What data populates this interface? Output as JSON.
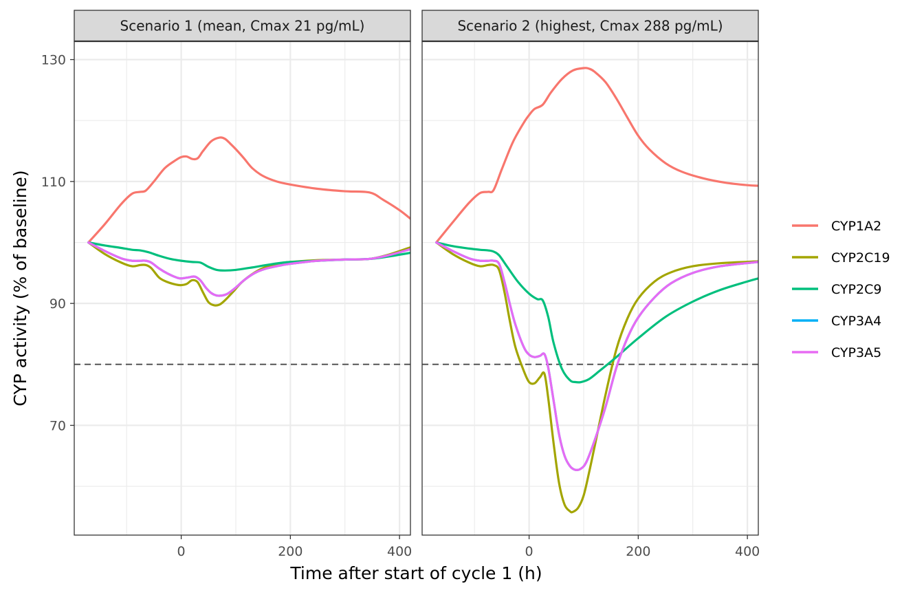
{
  "chart_data": {
    "type": "line",
    "xlabel": "Time after start of cycle 1 (h)",
    "ylabel": "CYP activity (% of baseline)",
    "xlim": [
      -196,
      420
    ],
    "ylim": [
      52,
      133
    ],
    "x_ticks": [
      0,
      200,
      400
    ],
    "x_tick_labels": [
      "0",
      "200",
      "400"
    ],
    "y_ticks": [
      70,
      90,
      110,
      130
    ],
    "y_tick_labels": [
      "70",
      "90",
      "110",
      "130"
    ],
    "reference_line": {
      "y": 80,
      "style": "dashed"
    },
    "grid": true,
    "legend_position": "right",
    "colors": {
      "CYP1A2": "#F8766D",
      "CYP2C19": "#A3A500",
      "CYP2C9": "#00BF7D",
      "CYP3A4": "#00B0F6",
      "CYP3A5": "#E76BF3"
    },
    "panels": [
      {
        "strip": "Scenario 1 (mean, Cmax 21 pg/mL)",
        "series": [
          {
            "name": "CYP1A2",
            "x": [
              -170,
              -140,
              -110,
              -90,
              -75,
              -65,
              -50,
              -30,
              -10,
              0,
              10,
              20,
              30,
              40,
              55,
              70,
              80,
              90,
              100,
              115,
              130,
              150,
              175,
              200,
              250,
              300,
              345,
              370,
              400,
              420
            ],
            "y": [
              100,
              103,
              106.3,
              108,
              108.3,
              108.5,
              110,
              112.2,
              113.5,
              114,
              114.1,
              113.7,
              113.8,
              115,
              116.6,
              117.2,
              117,
              116.2,
              115.3,
              113.8,
              112.2,
              110.9,
              110,
              109.5,
              108.8,
              108.4,
              108.2,
              107,
              105.3,
              103.9
            ]
          },
          {
            "name": "CYP2C19",
            "x": [
              -170,
              -140,
              -110,
              -90,
              -75,
              -65,
              -55,
              -40,
              -25,
              -10,
              0,
              10,
              20,
              30,
              40,
              50,
              60,
              70,
              80,
              95,
              110,
              130,
              150,
              175,
              200,
              250,
              300,
              345,
              380,
              420
            ],
            "y": [
              100,
              98.1,
              96.7,
              96.1,
              96.3,
              96.3,
              95.8,
              94.2,
              93.5,
              93.1,
              93,
              93.2,
              93.8,
              93.5,
              91.8,
              90.2,
              89.7,
              89.8,
              90.5,
              91.9,
              93.4,
              94.8,
              95.8,
              96.5,
              96.8,
              97.1,
              97.2,
              97.3,
              98,
              99.2
            ]
          },
          {
            "name": "CYP2C9",
            "x": [
              -170,
              -140,
              -110,
              -90,
              -75,
              -60,
              -40,
              -20,
              0,
              20,
              35,
              50,
              65,
              80,
              100,
              130,
              170,
              200,
              250,
              300,
              345,
              380,
              420
            ],
            "y": [
              100,
              99.5,
              99.1,
              98.8,
              98.7,
              98.4,
              97.8,
              97.3,
              97.0,
              96.8,
              96.7,
              96.0,
              95.5,
              95.4,
              95.5,
              95.9,
              96.5,
              96.8,
              97.0,
              97.2,
              97.3,
              97.7,
              98.3
            ]
          },
          {
            "name": "CYP3A4",
            "x": [
              -170,
              -140,
              -110,
              -90,
              -75,
              -65,
              -55,
              -40,
              -25,
              -10,
              0,
              15,
              25,
              35,
              45,
              55,
              65,
              75,
              85,
              100,
              115,
              135,
              155,
              180,
              200,
              250,
              300,
              345,
              380,
              420
            ],
            "y": [
              100,
              98.6,
              97.4,
              97,
              97,
              97,
              96.7,
              95.7,
              94.9,
              94.3,
              94.1,
              94.3,
              94.4,
              93.8,
              92.6,
              91.7,
              91.3,
              91.3,
              91.6,
              92.6,
              93.8,
              95,
              95.7,
              96.2,
              96.5,
              97,
              97.2,
              97.3,
              97.9,
              98.9
            ]
          },
          {
            "name": "CYP3A5",
            "x": [
              -170,
              -140,
              -110,
              -90,
              -75,
              -65,
              -55,
              -40,
              -25,
              -10,
              0,
              15,
              25,
              35,
              45,
              55,
              65,
              75,
              85,
              100,
              115,
              135,
              155,
              180,
              200,
              250,
              300,
              345,
              380,
              420
            ],
            "y": [
              100,
              98.6,
              97.4,
              97,
              97,
              97,
              96.7,
              95.7,
              94.9,
              94.3,
              94.1,
              94.3,
              94.4,
              93.8,
              92.6,
              91.7,
              91.3,
              91.3,
              91.6,
              92.6,
              93.8,
              95,
              95.7,
              96.2,
              96.5,
              97,
              97.2,
              97.3,
              97.9,
              98.9
            ]
          }
        ]
      },
      {
        "strip": "Scenario 2 (highest, Cmax 288 pg/mL)",
        "series": [
          {
            "name": "CYP1A2",
            "x": [
              -170,
              -140,
              -110,
              -90,
              -75,
              -65,
              -50,
              -30,
              -10,
              0,
              10,
              25,
              40,
              60,
              80,
              100,
              110,
              120,
              140,
              160,
              180,
              200,
              220,
              250,
              280,
              320,
              360,
              400,
              420
            ],
            "y": [
              100,
              103.3,
              106.5,
              108.1,
              108.3,
              108.6,
              112,
              116.4,
              119.6,
              120.9,
              121.9,
              122.6,
              124.6,
              126.8,
              128.2,
              128.6,
              128.5,
              128,
              126.3,
              123.6,
              120.5,
              117.5,
              115.3,
              113,
              111.6,
              110.5,
              109.8,
              109.4,
              109.3
            ]
          },
          {
            "name": "CYP2C19",
            "x": [
              -170,
              -140,
              -110,
              -90,
              -75,
              -65,
              -55,
              -45,
              -35,
              -25,
              -10,
              0,
              10,
              20,
              28,
              35,
              45,
              55,
              65,
              75,
              80,
              90,
              100,
              110,
              120,
              140,
              160,
              180,
              200,
              230,
              260,
              300,
              350,
              420
            ],
            "y": [
              100,
              98.1,
              96.7,
              96.1,
              96.3,
              96.3,
              95.5,
              91.8,
              87,
              82.8,
              79,
              77.1,
              76.9,
              77.9,
              78.5,
              74.5,
              67,
              60.5,
              57,
              55.9,
              55.8,
              56.5,
              58.5,
              62.3,
              66.5,
              75,
              82.5,
              87.5,
              90.8,
              93.6,
              95.1,
              96.1,
              96.6,
              96.9
            ]
          },
          {
            "name": "CYP2C9",
            "x": [
              -170,
              -140,
              -110,
              -90,
              -75,
              -65,
              -55,
              -40,
              -20,
              0,
              15,
              25,
              35,
              45,
              60,
              75,
              85,
              95,
              110,
              130,
              160,
              200,
              250,
              300,
              350,
              400,
              420
            ],
            "y": [
              100,
              99.4,
              99.0,
              98.8,
              98.7,
              98.5,
              97.9,
              96,
              93.5,
              91.6,
              90.7,
              90.5,
              87.8,
              83.5,
              79.3,
              77.4,
              77.1,
              77.1,
              77.6,
              79,
              81.2,
              84.3,
              87.8,
              90.3,
              92.2,
              93.6,
              94.1
            ]
          },
          {
            "name": "CYP3A4",
            "x": [
              -170,
              -140,
              -110,
              -90,
              -75,
              -65,
              -55,
              -45,
              -35,
              -25,
              -10,
              0,
              10,
              20,
              28,
              35,
              45,
              55,
              65,
              75,
              85,
              95,
              105,
              120,
              140,
              160,
              180,
              200,
              230,
              260,
              300,
              350,
              420
            ],
            "y": [
              100,
              98.6,
              97.4,
              97,
              97,
              97,
              96.5,
              93.5,
              89.8,
              86.5,
              82.9,
              81.6,
              81.2,
              81.4,
              81.7,
              79.5,
              74,
              68.5,
              65,
              63.3,
              62.7,
              62.9,
              64,
              67.5,
              73,
              79.5,
              84.3,
              87.7,
              91,
              93.3,
              95,
              96.1,
              96.8
            ]
          },
          {
            "name": "CYP3A5",
            "x": [
              -170,
              -140,
              -110,
              -90,
              -75,
              -65,
              -55,
              -45,
              -35,
              -25,
              -10,
              0,
              10,
              20,
              28,
              35,
              45,
              55,
              65,
              75,
              85,
              95,
              105,
              120,
              140,
              160,
              180,
              200,
              230,
              260,
              300,
              350,
              420
            ],
            "y": [
              100,
              98.6,
              97.4,
              97,
              97,
              97,
              96.5,
              93.5,
              89.8,
              86.5,
              82.9,
              81.6,
              81.2,
              81.4,
              81.7,
              79.5,
              74,
              68.5,
              65,
              63.3,
              62.7,
              62.9,
              64,
              67.5,
              73,
              79.5,
              84.3,
              87.7,
              91,
              93.3,
              95,
              96.1,
              96.8
            ]
          }
        ]
      }
    ],
    "legend": [
      "CYP1A2",
      "CYP2C19",
      "CYP2C9",
      "CYP3A4",
      "CYP3A5"
    ]
  }
}
